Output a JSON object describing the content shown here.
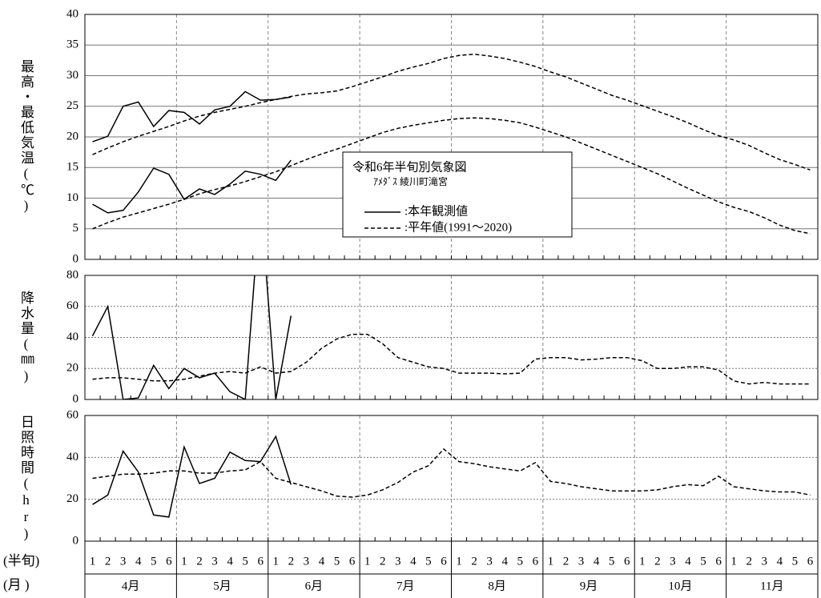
{
  "chart_data": [
    {
      "type": "line",
      "y_label": "最高・最低気温(℃)",
      "ylim": [
        0,
        40
      ],
      "yticks": [
        0,
        5,
        10,
        15,
        20,
        25,
        30,
        35,
        40
      ],
      "grid": true,
      "legend_title": "令和6年半旬別気象図",
      "legend_subtitle": "ｱﾒﾀﾞｽ 綾川町滝宮",
      "series": [
        {
          "name": ":本年観測値",
          "color": "#000000",
          "style": "solid",
          "values": [
            19.2,
            20.1,
            25.0,
            25.7,
            21.7,
            24.3,
            24.0,
            22.1,
            24.4,
            25.0,
            27.4,
            26.0,
            26.1,
            26.5,
            null,
            null,
            null,
            null,
            null,
            null,
            null,
            null,
            null,
            null,
            null,
            null,
            null,
            null,
            null,
            null,
            null,
            null,
            null,
            null,
            null,
            null,
            null,
            null,
            null,
            null,
            null,
            null,
            null,
            null,
            null,
            null,
            null,
            null
          ]
        },
        {
          "name": ":平年値(1991～2020)",
          "color": "#000000",
          "style": "dashed",
          "values": [
            17.1,
            18.2,
            19.2,
            20.1,
            20.9,
            21.7,
            22.6,
            23.4,
            24.0,
            24.5,
            25.0,
            25.6,
            26.1,
            26.6,
            27.0,
            27.2,
            27.5,
            28.2,
            29.0,
            29.8,
            30.7,
            31.4,
            32.0,
            32.8,
            33.3,
            33.5,
            33.2,
            32.8,
            32.2,
            31.5,
            30.6,
            29.8,
            28.8,
            27.8,
            26.8,
            26.0,
            25.1,
            24.2,
            23.3,
            22.3,
            21.2,
            20.2,
            19.5,
            18.6,
            17.4,
            16.3,
            15.5,
            14.6
          ]
        },
        {
          "color": "#000000",
          "style": "solid",
          "values": [
            9.0,
            7.6,
            8.0,
            11.0,
            14.9,
            13.9,
            9.8,
            11.5,
            10.6,
            12.3,
            14.4,
            13.9,
            12.9,
            16.2,
            null,
            null,
            null,
            null,
            null,
            null,
            null,
            null,
            null,
            null,
            null,
            null,
            null,
            null,
            null,
            null,
            null,
            null,
            null,
            null,
            null,
            null,
            null,
            null,
            null,
            null,
            null,
            null,
            null,
            null,
            null,
            null,
            null,
            null
          ]
        },
        {
          "color": "#000000",
          "style": "dashed",
          "values": [
            5.0,
            6.0,
            6.9,
            7.6,
            8.3,
            9.0,
            9.8,
            10.7,
            11.4,
            12.0,
            12.7,
            13.5,
            14.3,
            15.3,
            16.3,
            17.2,
            18.0,
            18.9,
            19.8,
            20.7,
            21.4,
            21.9,
            22.3,
            22.7,
            23.0,
            23.1,
            23.0,
            22.7,
            22.3,
            21.6,
            20.8,
            20.0,
            19.0,
            18.0,
            17.0,
            16.0,
            15.0,
            14.0,
            12.8,
            11.6,
            10.5,
            9.4,
            8.5,
            7.8,
            6.8,
            5.6,
            4.7,
            4.2
          ]
        }
      ]
    },
    {
      "type": "line",
      "y_label": "降水量(㎜)",
      "ylim": [
        0,
        80
      ],
      "yticks": [
        0,
        20,
        40,
        60,
        80
      ],
      "grid": true,
      "series": [
        {
          "color": "#000000",
          "style": "solid",
          "values": [
            41,
            60,
            0,
            1,
            22,
            7,
            20,
            14,
            17,
            5,
            0,
            130,
            0,
            54,
            null,
            null,
            null,
            null,
            null,
            null,
            null,
            null,
            null,
            null,
            null,
            null,
            null,
            null,
            null,
            null,
            null,
            null,
            null,
            null,
            null,
            null,
            null,
            null,
            null,
            null,
            null,
            null,
            null,
            null,
            null,
            null,
            null,
            null
          ]
        },
        {
          "color": "#000000",
          "style": "dashed",
          "values": [
            13,
            14,
            14,
            13,
            12,
            12,
            13,
            15,
            17,
            18,
            17,
            21,
            17,
            18,
            24,
            33,
            39,
            42,
            42,
            36,
            27,
            24,
            21,
            20,
            17,
            17,
            17,
            16.5,
            17,
            26,
            27,
            27,
            25.5,
            26,
            27,
            27,
            25,
            20,
            20,
            21,
            21,
            19,
            12,
            10,
            11,
            10,
            10,
            10
          ]
        }
      ]
    },
    {
      "type": "line",
      "y_label": "日照時間(hr)",
      "ylim": [
        0,
        60
      ],
      "yticks": [
        0,
        20,
        40,
        60
      ],
      "grid": true,
      "pentad_label": "(半旬)",
      "month_label": "(月 )",
      "categories": [
        "1",
        "2",
        "3",
        "4",
        "5",
        "6",
        "1",
        "2",
        "3",
        "4",
        "5",
        "6",
        "1",
        "2",
        "3",
        "4",
        "5",
        "6",
        "1",
        "2",
        "3",
        "4",
        "5",
        "6",
        "1",
        "2",
        "3",
        "4",
        "5",
        "6",
        "1",
        "2",
        "3",
        "4",
        "5",
        "6",
        "1",
        "2",
        "3",
        "4",
        "5",
        "6",
        "1",
        "2",
        "3",
        "4",
        "5",
        "6"
      ],
      "months": [
        "4月",
        "5月",
        "6月",
        "7月",
        "8月",
        "9月",
        "10月",
        "11月"
      ],
      "series": [
        {
          "color": "#000000",
          "style": "solid",
          "values": [
            17.5,
            22,
            43,
            33,
            12.5,
            11.5,
            45,
            27.5,
            30,
            42.5,
            38.5,
            38,
            50,
            27,
            null,
            null,
            null,
            null,
            null,
            null,
            null,
            null,
            null,
            null,
            null,
            null,
            null,
            null,
            null,
            null,
            null,
            null,
            null,
            null,
            null,
            null,
            null,
            null,
            null,
            null,
            null,
            null,
            null,
            null,
            null,
            null,
            null,
            null
          ]
        },
        {
          "color": "#000000",
          "style": "dashed",
          "values": [
            30,
            31,
            32,
            32,
            32.5,
            33.5,
            33.5,
            32.5,
            32.5,
            33.5,
            34,
            38,
            30,
            28,
            26,
            24,
            21.5,
            21,
            22,
            24.5,
            28,
            33,
            36,
            44,
            38,
            37,
            35.5,
            34.5,
            33.5,
            37.5,
            28.5,
            27.5,
            26,
            25,
            24,
            24,
            24,
            24.5,
            26,
            27,
            26.5,
            31,
            26,
            25,
            24,
            23.5,
            23.5,
            22
          ]
        }
      ]
    }
  ]
}
